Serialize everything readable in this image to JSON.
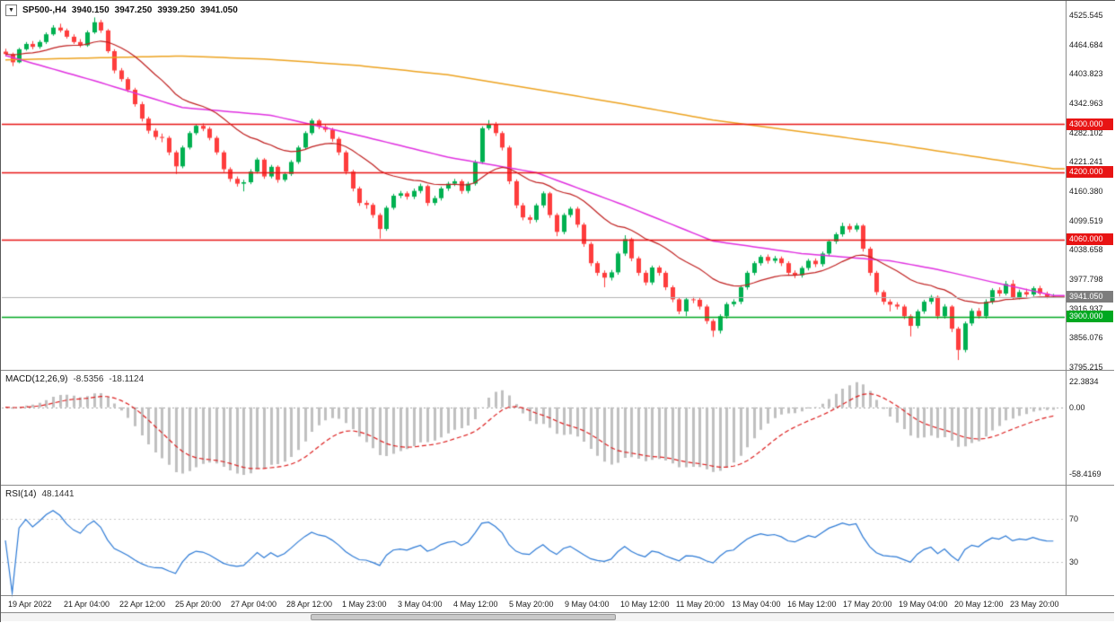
{
  "header": {
    "dropdown_glyph": "▼",
    "title": "SP500-,H4",
    "open": "3940.150",
    "high": "3947.250",
    "low": "3939.250",
    "close": "3941.050"
  },
  "chart_data": {
    "type": "candlestick",
    "symbol": "SP500-",
    "timeframe": "H4",
    "colors": {
      "bull": "#00b050",
      "bear": "#fe3d3d",
      "ma_fast": "#c02020",
      "ma_mid": "#e030e0",
      "ma_slow": "#eda320",
      "macd_hist": "#c0c0c0",
      "macd_signal": "#dd2020",
      "rsi_line": "#2e7bd6",
      "current_price_line": "#b4b4b4",
      "current_price_tag": "#7d7d7d"
    },
    "y_axis": {
      "labels": [
        "4525.545",
        "4464.684",
        "4403.823",
        "4342.963",
        "4282.102",
        "4221.241",
        "4160.380",
        "4099.519",
        "4038.658",
        "3977.798",
        "3916.937",
        "3856.076",
        "3795.215"
      ]
    },
    "x_labels": [
      "19 Apr 2022",
      "21 Apr 04:00",
      "22 Apr 12:00",
      "25 Apr 20:00",
      "27 Apr 04:00",
      "28 Apr 12:00",
      "1 May 23:00",
      "3 May 04:00",
      "4 May 12:00",
      "5 May 20:00",
      "9 May 04:00",
      "10 May 12:00",
      "11 May 20:00",
      "13 May 04:00",
      "16 May 12:00",
      "17 May 20:00",
      "19 May 04:00",
      "20 May 12:00",
      "23 May 20:00"
    ],
    "horizontal_levels": [
      {
        "label": "4300.000",
        "value": 4300.0,
        "color": "#e81414"
      },
      {
        "label": "4200.000",
        "value": 4200.0,
        "color": "#e81414"
      },
      {
        "label": "4060.000",
        "value": 4060.0,
        "color": "#e81414"
      },
      {
        "label": "3900.000",
        "value": 3900.0,
        "color": "#00a820"
      }
    ],
    "current_price": {
      "label": "3941.050",
      "value": 3941.05
    },
    "moving_averages": {
      "slow": {
        "points": [
          [
            0,
            4433
          ],
          [
            13,
            4437
          ],
          [
            26,
            4441
          ],
          [
            39,
            4434
          ],
          [
            52,
            4421
          ],
          [
            65,
            4402
          ],
          [
            78,
            4372
          ],
          [
            91,
            4341
          ],
          [
            104,
            4308
          ],
          [
            117,
            4284
          ],
          [
            130,
            4259
          ],
          [
            143,
            4231
          ],
          [
            154,
            4207
          ]
        ]
      },
      "mid": {
        "points": [
          [
            0,
            4442
          ],
          [
            13,
            4390
          ],
          [
            26,
            4334
          ],
          [
            39,
            4318
          ],
          [
            52,
            4276
          ],
          [
            65,
            4231
          ],
          [
            78,
            4199
          ],
          [
            91,
            4131
          ],
          [
            104,
            4057
          ],
          [
            117,
            4031
          ],
          [
            130,
            4016
          ],
          [
            137,
            3998
          ],
          [
            145,
            3972
          ],
          [
            154,
            3944
          ]
        ]
      },
      "fast": {
        "period": 21
      }
    },
    "candles": [
      [
        4450,
        4456,
        4440,
        4445
      ],
      [
        4445,
        4448,
        4420,
        4428
      ],
      [
        4428,
        4458,
        4426,
        4455
      ],
      [
        4455,
        4470,
        4452,
        4466
      ],
      [
        4466,
        4472,
        4455,
        4460
      ],
      [
        4460,
        4474,
        4456,
        4470
      ],
      [
        4470,
        4490,
        4466,
        4486
      ],
      [
        4486,
        4505,
        4483,
        4500
      ],
      [
        4500,
        4508,
        4490,
        4494
      ],
      [
        4494,
        4498,
        4477,
        4481
      ],
      [
        4481,
        4486,
        4466,
        4470
      ],
      [
        4470,
        4476,
        4459,
        4463
      ],
      [
        4463,
        4494,
        4460,
        4490
      ],
      [
        4490,
        4521,
        4487,
        4511
      ],
      [
        4511,
        4516,
        4489,
        4494
      ],
      [
        4494,
        4497,
        4447,
        4451
      ],
      [
        4451,
        4455,
        4405,
        4411
      ],
      [
        4411,
        4416,
        4388,
        4393
      ],
      [
        4393,
        4397,
        4366,
        4371
      ],
      [
        4371,
        4375,
        4336,
        4341
      ],
      [
        4341,
        4346,
        4305,
        4311
      ],
      [
        4311,
        4315,
        4280,
        4286
      ],
      [
        4286,
        4291,
        4267,
        4273
      ],
      [
        4273,
        4280,
        4262,
        4271
      ],
      [
        4271,
        4275,
        4235,
        4241
      ],
      [
        4241,
        4245,
        4196,
        4212
      ],
      [
        4212,
        4255,
        4208,
        4251
      ],
      [
        4251,
        4285,
        4247,
        4281
      ],
      [
        4281,
        4300,
        4277,
        4296
      ],
      [
        4296,
        4301,
        4285,
        4290
      ],
      [
        4290,
        4294,
        4266,
        4271
      ],
      [
        4271,
        4275,
        4236,
        4241
      ],
      [
        4241,
        4245,
        4200,
        4206
      ],
      [
        4206,
        4210,
        4180,
        4186
      ],
      [
        4186,
        4191,
        4170,
        4176
      ],
      [
        4176,
        4184,
        4160,
        4179
      ],
      [
        4179,
        4206,
        4175,
        4201
      ],
      [
        4201,
        4230,
        4197,
        4226
      ],
      [
        4226,
        4229,
        4186,
        4191
      ],
      [
        4191,
        4215,
        4187,
        4211
      ],
      [
        4211,
        4214,
        4178,
        4184
      ],
      [
        4184,
        4200,
        4180,
        4196
      ],
      [
        4196,
        4225,
        4192,
        4221
      ],
      [
        4221,
        4255,
        4217,
        4251
      ],
      [
        4251,
        4285,
        4247,
        4281
      ],
      [
        4281,
        4311,
        4277,
        4307
      ],
      [
        4307,
        4310,
        4289,
        4294
      ],
      [
        4294,
        4299,
        4283,
        4288
      ],
      [
        4288,
        4292,
        4263,
        4269
      ],
      [
        4269,
        4273,
        4235,
        4241
      ],
      [
        4241,
        4245,
        4195,
        4201
      ],
      [
        4201,
        4205,
        4160,
        4166
      ],
      [
        4166,
        4170,
        4130,
        4136
      ],
      [
        4136,
        4141,
        4124,
        4132
      ],
      [
        4132,
        4136,
        4105,
        4111
      ],
      [
        4111,
        4115,
        4062,
        4082
      ],
      [
        4082,
        4130,
        4078,
        4126
      ],
      [
        4126,
        4155,
        4122,
        4151
      ],
      [
        4151,
        4161,
        4146,
        4156
      ],
      [
        4156,
        4160,
        4143,
        4149
      ],
      [
        4149,
        4166,
        4144,
        4161
      ],
      [
        4161,
        4176,
        4156,
        4171
      ],
      [
        4171,
        4174,
        4130,
        4136
      ],
      [
        4136,
        4151,
        4131,
        4146
      ],
      [
        4146,
        4170,
        4141,
        4166
      ],
      [
        4166,
        4180,
        4161,
        4176
      ],
      [
        4176,
        4186,
        4171,
        4181
      ],
      [
        4181,
        4185,
        4155,
        4161
      ],
      [
        4161,
        4180,
        4156,
        4176
      ],
      [
        4176,
        4225,
        4172,
        4221
      ],
      [
        4221,
        4295,
        4217,
        4291
      ],
      [
        4291,
        4308,
        4287,
        4300
      ],
      [
        4300,
        4304,
        4275,
        4281
      ],
      [
        4281,
        4285,
        4245,
        4251
      ],
      [
        4251,
        4255,
        4175,
        4181
      ],
      [
        4181,
        4185,
        4125,
        4131
      ],
      [
        4131,
        4136,
        4100,
        4106
      ],
      [
        4106,
        4111,
        4093,
        4101
      ],
      [
        4101,
        4135,
        4096,
        4131
      ],
      [
        4131,
        4160,
        4126,
        4156
      ],
      [
        4156,
        4159,
        4105,
        4111
      ],
      [
        4111,
        4115,
        4067,
        4076
      ],
      [
        4076,
        4115,
        4071,
        4111
      ],
      [
        4111,
        4128,
        4106,
        4124
      ],
      [
        4124,
        4128,
        4085,
        4091
      ],
      [
        4091,
        4095,
        4045,
        4051
      ],
      [
        4051,
        4055,
        4005,
        4011
      ],
      [
        4011,
        4015,
        3985,
        3991
      ],
      [
        3991,
        3996,
        3961,
        3981
      ],
      [
        3981,
        3997,
        3975,
        3992
      ],
      [
        3992,
        4035,
        3987,
        4031
      ],
      [
        4031,
        4069,
        4026,
        4061
      ],
      [
        4061,
        4064,
        4015,
        4021
      ],
      [
        4021,
        4025,
        3985,
        3991
      ],
      [
        3991,
        3996,
        3965,
        3971
      ],
      [
        3971,
        4006,
        3966,
        4002
      ],
      [
        4002,
        4006,
        3985,
        3991
      ],
      [
        3991,
        3995,
        3955,
        3961
      ],
      [
        3961,
        3965,
        3930,
        3936
      ],
      [
        3936,
        3940,
        3905,
        3911
      ],
      [
        3911,
        3940,
        3901,
        3936
      ],
      [
        3936,
        3941,
        3928,
        3935
      ],
      [
        3935,
        3939,
        3915,
        3921
      ],
      [
        3921,
        3925,
        3885,
        3891
      ],
      [
        3891,
        3895,
        3858,
        3871
      ],
      [
        3871,
        3905,
        3865,
        3901
      ],
      [
        3901,
        3930,
        3896,
        3926
      ],
      [
        3926,
        3936,
        3921,
        3931
      ],
      [
        3931,
        3965,
        3926,
        3961
      ],
      [
        3961,
        3995,
        3956,
        3991
      ],
      [
        3991,
        4015,
        3986,
        4011
      ],
      [
        4011,
        4028,
        4006,
        4024
      ],
      [
        4024,
        4029,
        4010,
        4016
      ],
      [
        4016,
        4026,
        4011,
        4021
      ],
      [
        4021,
        4025,
        4005,
        4011
      ],
      [
        4011,
        4015,
        3985,
        3991
      ],
      [
        3991,
        3996,
        3980,
        3986
      ],
      [
        3986,
        4005,
        3981,
        4001
      ],
      [
        4001,
        4020,
        3996,
        4016
      ],
      [
        4016,
        4021,
        4003,
        4009
      ],
      [
        4009,
        4035,
        4004,
        4031
      ],
      [
        4031,
        4060,
        4026,
        4056
      ],
      [
        4056,
        4075,
        4051,
        4071
      ],
      [
        4071,
        4095,
        4066,
        4088
      ],
      [
        4088,
        4093,
        4075,
        4081
      ],
      [
        4081,
        4094,
        4076,
        4089
      ],
      [
        4089,
        4092,
        4035,
        4041
      ],
      [
        4041,
        4045,
        3985,
        3991
      ],
      [
        3991,
        3995,
        3945,
        3951
      ],
      [
        3951,
        3955,
        3925,
        3931
      ],
      [
        3931,
        3936,
        3911,
        3925
      ],
      [
        3925,
        3930,
        3915,
        3921
      ],
      [
        3921,
        3925,
        3895,
        3901
      ],
      [
        3901,
        3905,
        3859,
        3881
      ],
      [
        3881,
        3915,
        3876,
        3911
      ],
      [
        3911,
        3935,
        3906,
        3931
      ],
      [
        3931,
        3945,
        3926,
        3941
      ],
      [
        3941,
        3944,
        3895,
        3901
      ],
      [
        3901,
        3926,
        3896,
        3921
      ],
      [
        3921,
        3924,
        3868,
        3875
      ],
      [
        3875,
        3879,
        3810,
        3831
      ],
      [
        3831,
        3890,
        3826,
        3886
      ],
      [
        3886,
        3917,
        3881,
        3912
      ],
      [
        3912,
        3918,
        3896,
        3901
      ],
      [
        3901,
        3936,
        3896,
        3931
      ],
      [
        3931,
        3959,
        3926,
        3955
      ],
      [
        3955,
        3961,
        3942,
        3948
      ],
      [
        3948,
        3974,
        3944,
        3968
      ],
      [
        3968,
        3976,
        3937,
        3940
      ],
      [
        3940,
        3956,
        3936,
        3951
      ],
      [
        3951,
        3958,
        3941,
        3946
      ],
      [
        3946,
        3963,
        3942,
        3959
      ],
      [
        3959,
        3964,
        3944,
        3948
      ],
      [
        3948,
        3952,
        3938,
        3942
      ],
      [
        3940.15,
        3947.25,
        3939.25,
        3941.05
      ]
    ],
    "macd": {
      "label": "MACD(12,26,9)",
      "value_main": "-8.5356",
      "value_signal": "-18.1124",
      "params": [
        12,
        26,
        9
      ],
      "axis_labels": [
        "22.3834",
        "0.00",
        "-58.4169"
      ]
    },
    "rsi": {
      "label": "RSI(14)",
      "value": "48.1441",
      "period": 14,
      "axis_labels": [
        "70",
        "30"
      ]
    }
  }
}
